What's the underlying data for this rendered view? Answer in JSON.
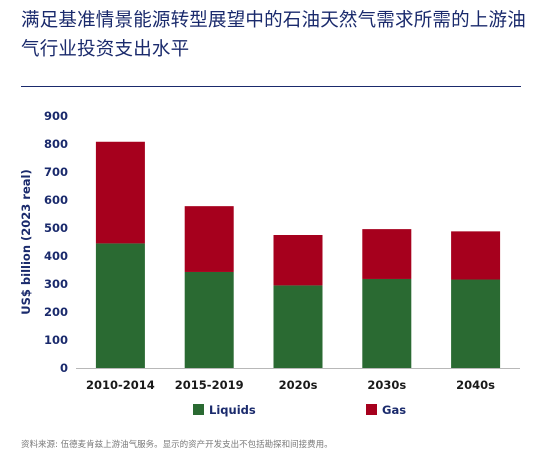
{
  "title": "满足基准情景能源转型展望中的石油天然气需求所需的上游油气行业投资支出水平",
  "source": "资料来源: 伍德麦肯兹上游油气服务。显示的资产开发支出不包括勘探和间接费用。",
  "chart_data": {
    "type": "bar",
    "stacked": true,
    "categories": [
      "2010-2014",
      "2015-2019",
      "2020s",
      "2030s",
      "2040s"
    ],
    "series": [
      {
        "name": "Liquids",
        "values": [
          445,
          343,
          295,
          318,
          316
        ],
        "color": "#2a6a32"
      },
      {
        "name": "Gas",
        "values": [
          363,
          235,
          180,
          178,
          172
        ],
        "color": "#a6001d"
      }
    ],
    "ylabel": "US$ billion (2023 real)",
    "xlabel": "",
    "ylim": [
      0,
      900
    ],
    "yticks": [
      0,
      100,
      200,
      300,
      400,
      500,
      600,
      700,
      800,
      900
    ],
    "grid": false,
    "legend_position": "bottom"
  },
  "colors": {
    "title": "#1a2a6c",
    "axis_text": "#1a2a6c"
  }
}
